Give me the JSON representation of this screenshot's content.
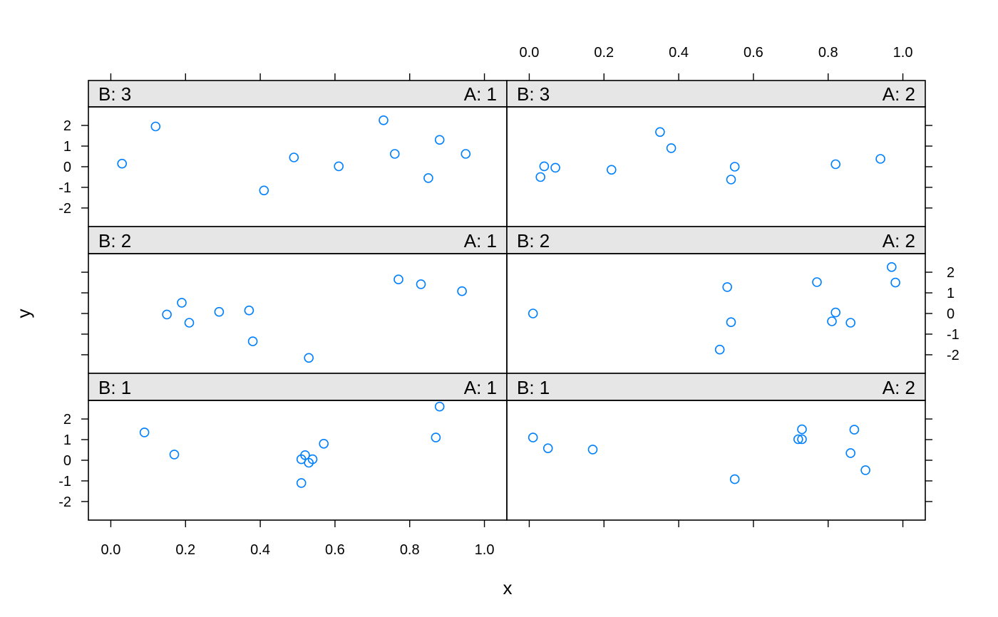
{
  "chart_data": {
    "type": "scatter",
    "layout": "lattice 2 columns x 3 rows",
    "xlabel": "x",
    "ylabel": "y",
    "xlim": [
      -0.06,
      1.06
    ],
    "ylim": [
      -2.9,
      2.9
    ],
    "x_ticks": [
      "0.0",
      "0.2",
      "0.4",
      "0.6",
      "0.8",
      "1.0"
    ],
    "y_ticks": [
      "-2",
      "-1",
      "0",
      "1",
      "2"
    ],
    "point_color": "#0080ff",
    "panels": [
      {
        "strip_left": "B: 3",
        "strip_right": "A: 1",
        "x": [
          0.03,
          0.12,
          0.41,
          0.49,
          0.61,
          0.73,
          0.76,
          0.85,
          0.88,
          0.95
        ],
        "y": [
          0.15,
          1.95,
          -1.15,
          0.45,
          0.02,
          2.25,
          0.62,
          -0.55,
          1.3,
          0.62
        ]
      },
      {
        "strip_left": "B: 3",
        "strip_right": "A: 2",
        "x": [
          0.03,
          0.04,
          0.07,
          0.22,
          0.35,
          0.38,
          0.54,
          0.55,
          0.82,
          0.94
        ],
        "y": [
          -0.5,
          0.02,
          -0.05,
          -0.15,
          1.68,
          0.9,
          -0.62,
          0.0,
          0.12,
          0.38
        ]
      },
      {
        "strip_left": "B: 2",
        "strip_right": "A: 1",
        "x": [
          0.15,
          0.19,
          0.21,
          0.29,
          0.37,
          0.38,
          0.53,
          0.77,
          0.83,
          0.94
        ],
        "y": [
          -0.05,
          0.52,
          -0.45,
          0.08,
          0.15,
          -1.35,
          -2.15,
          1.65,
          1.42,
          1.08
        ]
      },
      {
        "strip_left": "B: 2",
        "strip_right": "A: 2",
        "x": [
          0.01,
          0.51,
          0.53,
          0.54,
          0.77,
          0.81,
          0.82,
          0.86,
          0.97,
          0.98
        ],
        "y": [
          0.0,
          -1.75,
          1.28,
          -0.42,
          1.52,
          -0.38,
          0.05,
          -0.45,
          2.25,
          1.5
        ]
      },
      {
        "strip_left": "B: 1",
        "strip_right": "A: 1",
        "x": [
          0.09,
          0.17,
          0.51,
          0.51,
          0.52,
          0.53,
          0.54,
          0.57,
          0.87,
          0.88
        ],
        "y": [
          1.35,
          0.28,
          -1.1,
          0.05,
          0.25,
          -0.12,
          0.05,
          0.8,
          1.1,
          2.6
        ]
      },
      {
        "strip_left": "B: 1",
        "strip_right": "A: 2",
        "x": [
          0.01,
          0.05,
          0.17,
          0.55,
          0.72,
          0.73,
          0.73,
          0.86,
          0.87,
          0.9
        ],
        "y": [
          1.1,
          0.58,
          0.52,
          -0.92,
          1.02,
          1.02,
          1.5,
          0.35,
          1.48,
          -0.48
        ]
      }
    ]
  }
}
